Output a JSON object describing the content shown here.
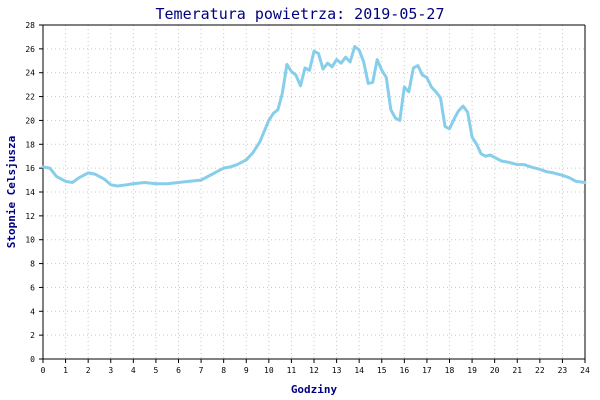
{
  "chart_data": {
    "type": "line",
    "title": "Temeratura powietrza: 2019-05-27",
    "xlabel": "Godziny",
    "ylabel": "Stopnie Celsjusza",
    "xlim": [
      0,
      24
    ],
    "ylim": [
      0,
      28
    ],
    "xticks": [
      "0",
      "1",
      "2",
      "3",
      "4",
      "5",
      "6",
      "7",
      "8",
      "9",
      "10",
      "11",
      "12",
      "13",
      "14",
      "15",
      "16",
      "17",
      "18",
      "19",
      "20",
      "21",
      "22",
      "23",
      "24"
    ],
    "yticks": [
      "0",
      "2",
      "4",
      "6",
      "8",
      "10",
      "12",
      "14",
      "16",
      "18",
      "20",
      "22",
      "24",
      "26",
      "28"
    ],
    "grid": true,
    "line_color": "#87CEEB",
    "series": [
      {
        "name": "",
        "x": [
          0,
          0.3,
          0.6,
          1.0,
          1.3,
          1.6,
          2.0,
          2.3,
          2.7,
          3.0,
          3.3,
          3.7,
          4.0,
          4.5,
          5.0,
          5.5,
          6.0,
          6.5,
          7.0,
          7.3,
          7.6,
          8.0,
          8.3,
          8.6,
          9.0,
          9.3,
          9.6,
          10.0,
          10.2,
          10.4,
          10.6,
          10.8,
          11.0,
          11.2,
          11.4,
          11.6,
          11.8,
          12.0,
          12.2,
          12.4,
          12.6,
          12.8,
          13.0,
          13.2,
          13.4,
          13.6,
          13.8,
          14.0,
          14.2,
          14.4,
          14.6,
          14.8,
          15.0,
          15.2,
          15.4,
          15.6,
          15.8,
          16.0,
          16.2,
          16.4,
          16.6,
          16.8,
          17.0,
          17.2,
          17.4,
          17.6,
          17.8,
          18.0,
          18.2,
          18.4,
          18.6,
          18.8,
          19.0,
          19.2,
          19.4,
          19.6,
          19.8,
          20.0,
          20.3,
          20.6,
          21.0,
          21.3,
          21.6,
          22.0,
          22.3,
          22.6,
          23.0,
          23.3,
          23.6,
          24.0
        ],
        "values": [
          16.1,
          16.0,
          15.3,
          14.9,
          14.8,
          15.2,
          15.6,
          15.5,
          15.1,
          14.6,
          14.5,
          14.6,
          14.7,
          14.8,
          14.7,
          14.7,
          14.8,
          14.9,
          15.0,
          15.3,
          15.6,
          16.0,
          16.1,
          16.3,
          16.7,
          17.3,
          18.2,
          20.0,
          20.6,
          20.9,
          22.3,
          24.7,
          24.1,
          23.8,
          22.9,
          24.4,
          24.2,
          25.8,
          25.6,
          24.3,
          24.8,
          24.5,
          25.1,
          24.8,
          25.3,
          24.9,
          26.2,
          25.9,
          24.9,
          23.1,
          23.2,
          25.1,
          24.2,
          23.6,
          20.9,
          20.2,
          20.0,
          22.8,
          22.4,
          24.4,
          24.6,
          23.8,
          23.6,
          22.8,
          22.4,
          21.9,
          19.5,
          19.3,
          20.1,
          20.8,
          21.2,
          20.7,
          18.6,
          18.0,
          17.2,
          17.0,
          17.1,
          16.9,
          16.6,
          16.5,
          16.3,
          16.3,
          16.1,
          15.9,
          15.7,
          15.6,
          15.4,
          15.2,
          14.9,
          14.8
        ]
      }
    ]
  }
}
